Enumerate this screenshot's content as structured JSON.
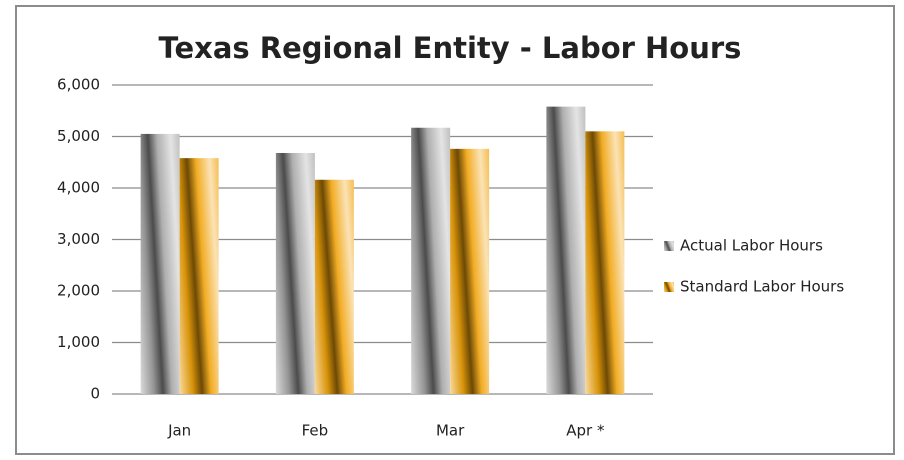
{
  "chart_data": {
    "type": "bar",
    "title": "Texas Regional Entity - Labor Hours",
    "categories": [
      "Jan",
      "Feb",
      "Mar",
      "Apr *"
    ],
    "series": [
      {
        "name": "Actual Labor Hours",
        "color": "#a6a6a6",
        "values": [
          5050,
          4680,
          5170,
          5580
        ]
      },
      {
        "name": "Standard Labor Hours",
        "color": "#f0a30a",
        "values": [
          4580,
          4160,
          4760,
          5100
        ]
      }
    ],
    "ylim": [
      0,
      6000
    ],
    "yticks": [
      0,
      {
        "value": 1000,
        "label": "1,000"
      },
      {
        "value": 2000,
        "label": "2,000"
      },
      {
        "value": 3000,
        "label": "3,000"
      },
      {
        "value": 4000,
        "label": "4,000"
      },
      {
        "value": 5000,
        "label": "5,000"
      },
      {
        "value": 6000,
        "label": "6,000"
      }
    ],
    "grid": true,
    "legend": "right"
  }
}
